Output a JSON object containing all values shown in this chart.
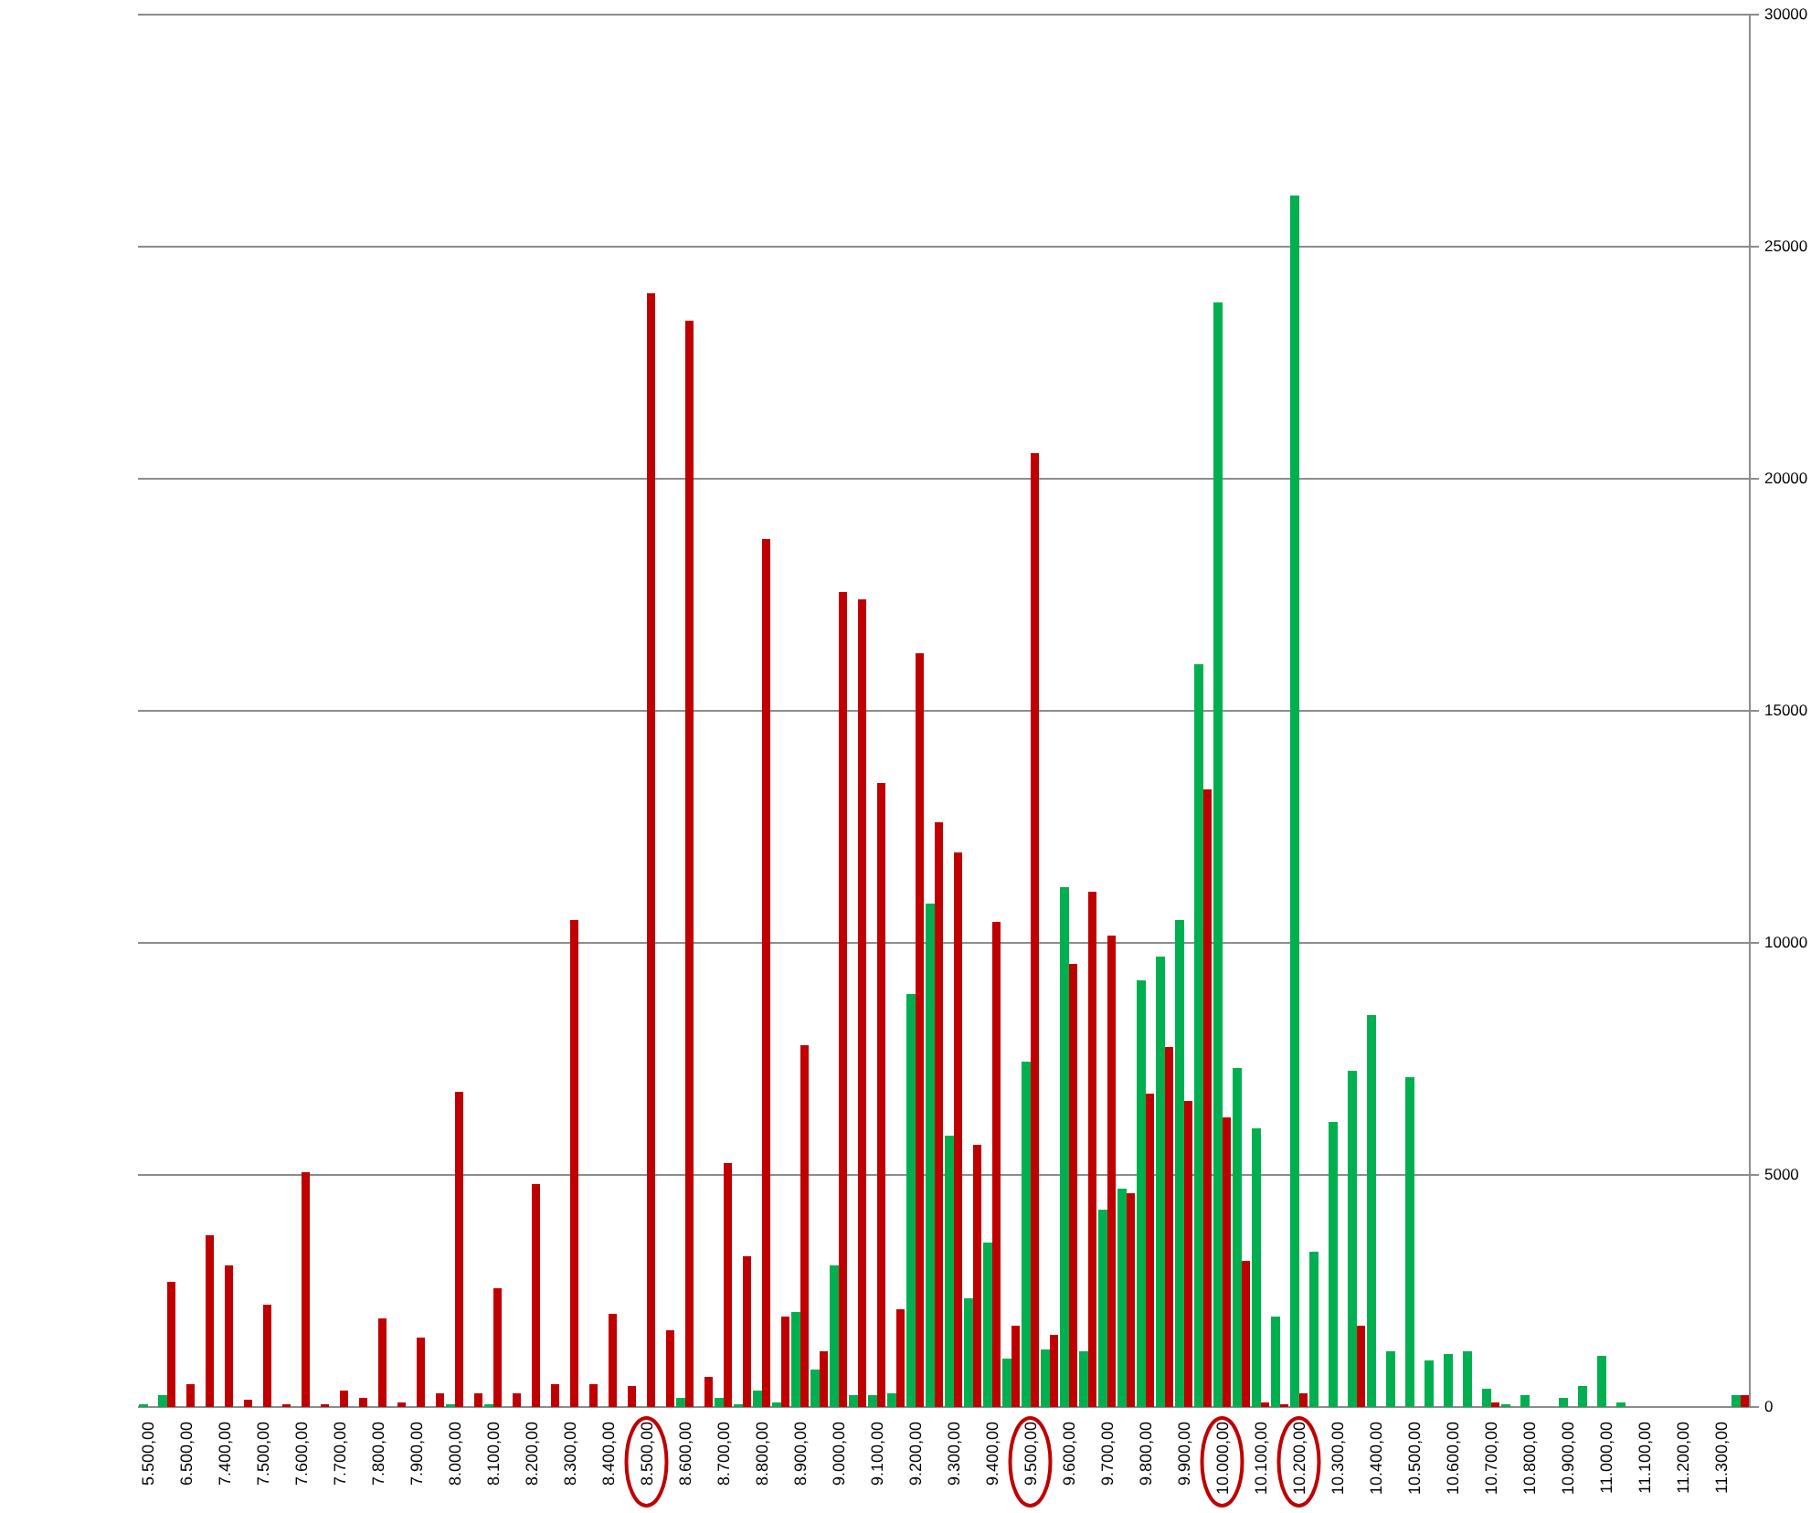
{
  "chart_data": {
    "type": "bar",
    "categories": [
      "5.500,00",
      null,
      "6.500,00",
      null,
      "7.400,00",
      null,
      "7.500,00",
      null,
      "7.600,00",
      null,
      "7.700,00",
      null,
      "7.800,00",
      null,
      "7.900,00",
      null,
      "8.000,00",
      null,
      "8.100,00",
      null,
      "8.200,00",
      null,
      "8.300,00",
      null,
      "8.400,00",
      null,
      "8.500,00",
      null,
      "8.600,00",
      null,
      "8.700,00",
      null,
      "8.800,00",
      null,
      "8.900,00",
      null,
      "9.000,00",
      null,
      "9.100,00",
      null,
      "9.200,00",
      null,
      "9.300,00",
      null,
      "9.400,00",
      null,
      "9.500,00",
      null,
      "9.600,00",
      null,
      "9.700,00",
      null,
      "9.800,00",
      null,
      "9.900,00",
      null,
      "10.000,00",
      null,
      "10.100,00",
      null,
      "10.200,00",
      null,
      "10.300,00",
      null,
      "10.400,00",
      null,
      "10.500,00",
      null,
      "10.600,00",
      null,
      "10.700,00",
      null,
      "10.800,00",
      null,
      "10.900,00",
      null,
      "11.000,00",
      null,
      "11.100,00",
      null,
      "11.200,00",
      null,
      "11.300,00",
      null
    ],
    "series": [
      {
        "color": "#00b050",
        "values": [
          50,
          250,
          0,
          0,
          0,
          0,
          0,
          0,
          0,
          0,
          0,
          0,
          0,
          0,
          0,
          0,
          50,
          0,
          50,
          0,
          0,
          0,
          0,
          0,
          0,
          0,
          0,
          0,
          200,
          0,
          200,
          50,
          350,
          100,
          2050,
          800,
          3050,
          250,
          250,
          300,
          8900,
          10850,
          5850,
          2350,
          3550,
          1050,
          7450,
          1250,
          11200,
          1200,
          4250,
          4700,
          9200,
          9700,
          10500,
          16000,
          23800,
          7300,
          6000,
          1950,
          26100,
          3350,
          6150,
          7250,
          8450,
          1200,
          7100,
          1000,
          1150,
          1200,
          400,
          50,
          250,
          0,
          200,
          450,
          1100,
          100,
          0,
          0,
          0,
          0,
          0,
          250
        ]
      },
      {
        "color": "#c00000",
        "values": [
          0,
          2700,
          500,
          3700,
          3050,
          150,
          2200,
          50,
          5050,
          50,
          350,
          200,
          1900,
          100,
          1500,
          300,
          6800,
          300,
          2550,
          300,
          4800,
          500,
          10500,
          500,
          2000,
          450,
          24000,
          1650,
          23400,
          650,
          5250,
          3250,
          18700,
          1950,
          7800,
          1200,
          17550,
          17400,
          13450,
          2100,
          16250,
          12600,
          11950,
          5650,
          10450,
          1750,
          20550,
          1550,
          9550,
          11100,
          10150,
          4600,
          6750,
          7750,
          6600,
          13300,
          6250,
          3150,
          100,
          50,
          300,
          0,
          0,
          1750,
          0,
          0,
          0,
          0,
          0,
          0,
          100,
          0,
          0,
          0,
          0,
          0,
          0,
          0,
          0,
          0,
          0,
          0,
          0,
          250
        ]
      }
    ],
    "ylim": [
      0,
      30000
    ],
    "yticks": [
      0,
      5000,
      10000,
      15000,
      20000,
      25000,
      30000
    ],
    "grid": "y"
  }
}
